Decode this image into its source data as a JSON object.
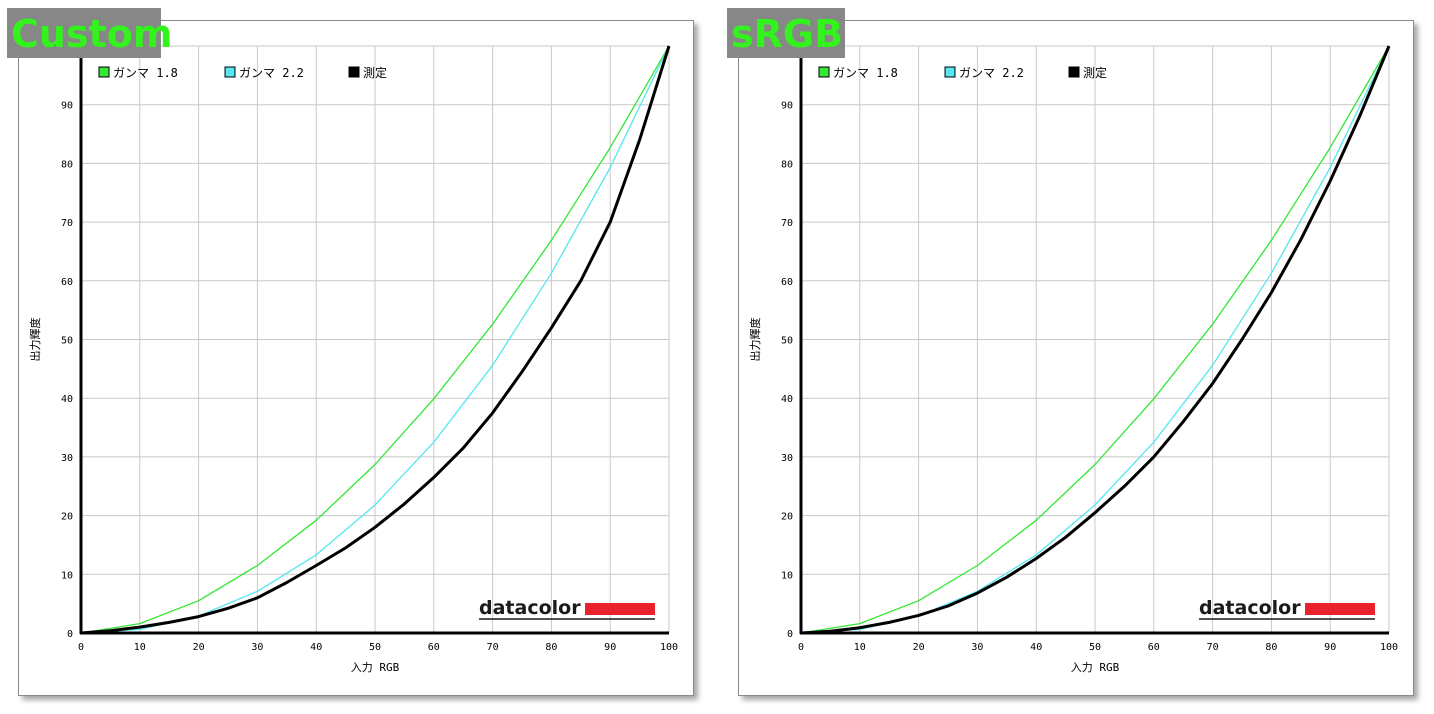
{
  "chart_data": [
    {
      "type": "line",
      "title": "Custom",
      "xlabel": "入力 RGB",
      "ylabel": "出力輝度",
      "xlim": [
        0,
        100
      ],
      "ylim": [
        0,
        100
      ],
      "xticks": [
        0,
        10,
        20,
        30,
        40,
        50,
        60,
        70,
        80,
        90,
        100
      ],
      "yticks": [
        0,
        10,
        20,
        30,
        40,
        50,
        60,
        70,
        80,
        90
      ],
      "grid": true,
      "legend_position": "top-left",
      "watermark": "datacolor",
      "series": [
        {
          "name": "ガンマ 1.8",
          "color": "#33e633",
          "gamma": 1.8,
          "x": [
            0,
            10,
            20,
            30,
            40,
            50,
            60,
            70,
            80,
            90,
            100
          ],
          "y": [
            0,
            1.6,
            5.5,
            11.5,
            19.2,
            28.7,
            39.9,
            52.6,
            66.9,
            82.7,
            100
          ]
        },
        {
          "name": "ガンマ 2.2",
          "color": "#55e6f0",
          "gamma": 2.2,
          "x": [
            0,
            10,
            20,
            30,
            40,
            50,
            60,
            70,
            80,
            90,
            100
          ],
          "y": [
            0,
            0.6,
            2.9,
            7.1,
            13.3,
            21.8,
            32.5,
            45.6,
            61.3,
            79.3,
            100
          ]
        },
        {
          "name": "測定",
          "color": "#000000",
          "x": [
            0,
            5,
            10,
            15,
            20,
            25,
            30,
            35,
            40,
            45,
            50,
            55,
            60,
            65,
            70,
            75,
            80,
            85,
            90,
            95,
            100
          ],
          "y": [
            0,
            0.4,
            1.0,
            1.8,
            2.8,
            4.2,
            6.0,
            8.6,
            11.5,
            14.5,
            18.0,
            22.0,
            26.5,
            31.5,
            37.5,
            44.5,
            52.0,
            60.0,
            70.0,
            84.0,
            100
          ]
        }
      ]
    },
    {
      "type": "line",
      "title": "sRGB",
      "xlabel": "入力 RGB",
      "ylabel": "出力輝度",
      "xlim": [
        0,
        100
      ],
      "ylim": [
        0,
        100
      ],
      "xticks": [
        0,
        10,
        20,
        30,
        40,
        50,
        60,
        70,
        80,
        90,
        100
      ],
      "yticks": [
        0,
        10,
        20,
        30,
        40,
        50,
        60,
        70,
        80,
        90
      ],
      "grid": true,
      "legend_position": "top-left",
      "watermark": "datacolor",
      "series": [
        {
          "name": "ガンマ 1.8",
          "color": "#33e633",
          "gamma": 1.8,
          "x": [
            0,
            10,
            20,
            30,
            40,
            50,
            60,
            70,
            80,
            90,
            100
          ],
          "y": [
            0,
            1.6,
            5.5,
            11.5,
            19.2,
            28.7,
            39.9,
            52.6,
            66.9,
            82.7,
            100
          ]
        },
        {
          "name": "ガンマ 2.2",
          "color": "#55e6f0",
          "gamma": 2.2,
          "x": [
            0,
            10,
            20,
            30,
            40,
            50,
            60,
            70,
            80,
            90,
            100
          ],
          "y": [
            0,
            0.6,
            2.9,
            7.1,
            13.3,
            21.8,
            32.5,
            45.6,
            61.3,
            79.3,
            100
          ]
        },
        {
          "name": "測定",
          "color": "#000000",
          "x": [
            0,
            5,
            10,
            15,
            20,
            25,
            30,
            35,
            40,
            45,
            50,
            55,
            60,
            65,
            70,
            75,
            80,
            85,
            90,
            95,
            100
          ],
          "y": [
            0,
            0.3,
            0.9,
            1.8,
            3.0,
            4.6,
            6.8,
            9.5,
            12.7,
            16.3,
            20.5,
            25.0,
            30.0,
            36.0,
            42.5,
            50.0,
            58.0,
            67.0,
            77.0,
            88.0,
            100
          ]
        }
      ]
    }
  ],
  "colors": {
    "tag_bg": "#878787",
    "tag_text": "#33f21d",
    "grid": "#c8c8c8",
    "logo_bar": "#e8212c"
  }
}
